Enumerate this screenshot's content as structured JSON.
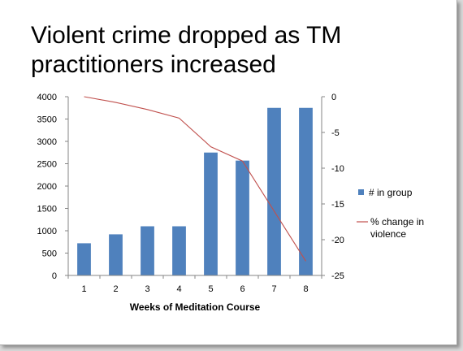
{
  "title": "Violent crime dropped as TM practitioners increased",
  "chart_data": {
    "type": "bar",
    "title": "Violent crime dropped as TM practitioners increased",
    "categories": [
      "1",
      "2",
      "3",
      "4",
      "5",
      "6",
      "7",
      "8"
    ],
    "xlabel": "Weeks of Meditation Course",
    "ylabel": "",
    "ylim": [
      0,
      4000
    ],
    "y2lim": [
      -25,
      0
    ],
    "yticks": [
      "4000",
      "3500",
      "3000",
      "2500",
      "2000",
      "1500",
      "1000",
      "500",
      "0"
    ],
    "y2ticks": [
      "0",
      "-5",
      "-10",
      "-15",
      "-20",
      "-25"
    ],
    "grid": false,
    "legend_position": "right",
    "series": [
      {
        "name": "# in group",
        "type": "bar",
        "axis": "left",
        "color": "#4f81bd",
        "values": [
          720,
          920,
          1100,
          1100,
          2750,
          2570,
          3750,
          3750
        ]
      },
      {
        "name": "% change in violence",
        "type": "line",
        "axis": "right",
        "color": "#c0504d",
        "values": [
          0,
          -0.8,
          -1.8,
          -3,
          -7,
          -9,
          -16,
          -23
        ]
      }
    ]
  }
}
